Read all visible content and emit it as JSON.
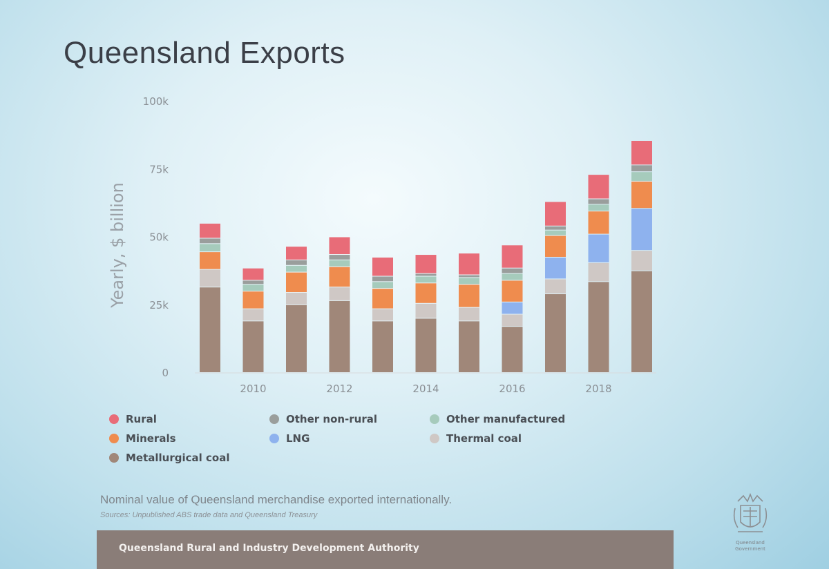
{
  "slide": {
    "title": "Queensland Exports",
    "caption": "Nominal value of Queensland merchandise exported internationally.",
    "sources": "Sources: Unpublished ABS trade data and Queensland Treasury",
    "footer": "Queensland Rural and Industry Development Authority",
    "logo_text": "Queensland Government"
  },
  "colors": {
    "Rural": "#e86c78",
    "Other non-rural": "#9a9e9c",
    "Other manufactured": "#a6cbbc",
    "Minerals": "#ef8c4e",
    "LNG": "#8eb2ee",
    "Thermal coal": "#cfc8c5",
    "Metallurgical coal": "#a08779"
  },
  "chart_data": {
    "type": "bar",
    "stacked": true,
    "ylabel": "Yearly, $ billion",
    "ylim": [
      0,
      100000
    ],
    "yticks": [
      "0",
      "25k",
      "50k",
      "75k",
      "100k"
    ],
    "ytick_values": [
      0,
      25000,
      50000,
      75000,
      100000
    ],
    "xtick_labels": [
      "2010",
      "2012",
      "2014",
      "2016",
      "2018"
    ],
    "xtick_values": [
      2010,
      2012,
      2014,
      2016,
      2018
    ],
    "x": [
      2009,
      2010,
      2011,
      2012,
      2013,
      2014,
      2015,
      2016,
      2017,
      2018,
      2019
    ],
    "series": [
      {
        "name": "Metallurgical coal",
        "values": [
          31500,
          19000,
          25000,
          26500,
          19000,
          20000,
          19000,
          17000,
          29000,
          33500,
          37500
        ]
      },
      {
        "name": "Thermal coal",
        "values": [
          6500,
          4500,
          4500,
          5000,
          4500,
          5500,
          5000,
          4500,
          5500,
          7000,
          7500
        ]
      },
      {
        "name": "LNG",
        "values": [
          0,
          0,
          0,
          0,
          0,
          0,
          0,
          4500,
          8000,
          10500,
          15500
        ]
      },
      {
        "name": "Minerals",
        "values": [
          6500,
          6500,
          7500,
          7500,
          7500,
          7500,
          8500,
          8000,
          8000,
          8500,
          10000
        ]
      },
      {
        "name": "Other manufactured",
        "values": [
          3000,
          2500,
          2500,
          2500,
          2500,
          2500,
          2500,
          2500,
          2000,
          2500,
          3500
        ]
      },
      {
        "name": "Other non-rural",
        "values": [
          2000,
          1500,
          2000,
          2000,
          2000,
          1000,
          1000,
          2000,
          1500,
          2000,
          2500
        ]
      },
      {
        "name": "Rural",
        "values": [
          5500,
          4500,
          5000,
          6500,
          7000,
          7000,
          8000,
          8500,
          9000,
          9000,
          9000
        ]
      }
    ],
    "legend": [
      "Rural",
      "Other non-rural",
      "Other manufactured",
      "Minerals",
      "LNG",
      "Thermal coal",
      "Metallurgical coal"
    ],
    "legend_placement": "bottom",
    "grid": false
  }
}
